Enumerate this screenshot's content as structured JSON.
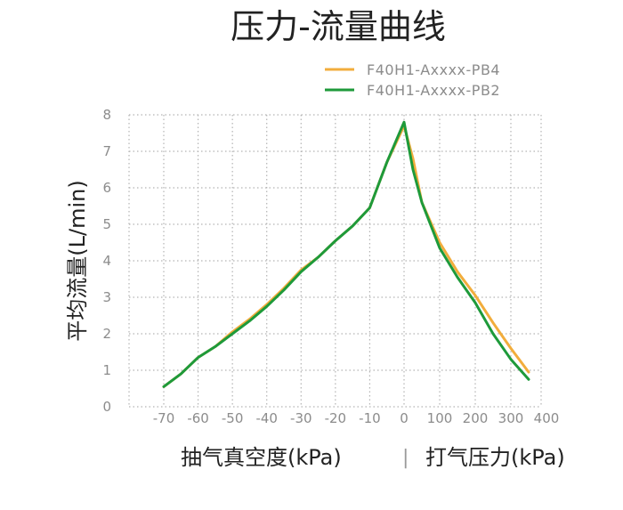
{
  "chart_data": {
    "type": "line",
    "title": "压力-流量曲线",
    "ylabel": "平均流量(L/min)",
    "xlabel_left": "抽气真空度(kPa)",
    "xlabel_separator": "|",
    "xlabel_right": "打气压力(kPa)",
    "x_ticks": [
      "-70",
      "-60",
      "-50",
      "-40",
      "-30",
      "-20",
      "-10",
      "0",
      "100",
      "200",
      "300",
      "400"
    ],
    "y_ticks": [
      "0",
      "1",
      "2",
      "3",
      "4",
      "5",
      "6",
      "7",
      "8"
    ],
    "ylim": [
      0,
      8
    ],
    "grid": true,
    "legend_position": "top-right",
    "series": [
      {
        "name": "F40H1-Axxxx-PB4",
        "color": "#f2ad3c",
        "points": [
          [
            -70,
            0.55
          ],
          [
            -65,
            0.9
          ],
          [
            -60,
            1.35
          ],
          [
            -55,
            1.65
          ],
          [
            -50,
            2.05
          ],
          [
            -45,
            2.4
          ],
          [
            -40,
            2.8
          ],
          [
            -35,
            3.25
          ],
          [
            -30,
            3.75
          ],
          [
            -25,
            4.1
          ],
          [
            -20,
            4.55
          ],
          [
            -15,
            4.95
          ],
          [
            -10,
            5.45
          ],
          [
            -5,
            6.7
          ],
          [
            0,
            7.7
          ],
          [
            25,
            6.8
          ],
          [
            50,
            5.6
          ],
          [
            100,
            4.5
          ],
          [
            150,
            3.7
          ],
          [
            200,
            3.05
          ],
          [
            250,
            2.3
          ],
          [
            300,
            1.6
          ],
          [
            350,
            0.95
          ]
        ]
      },
      {
        "name": "F40H1-Axxxx-PB2",
        "color": "#1e9a3a",
        "points": [
          [
            -70,
            0.55
          ],
          [
            -65,
            0.9
          ],
          [
            -60,
            1.35
          ],
          [
            -55,
            1.65
          ],
          [
            -50,
            2.0
          ],
          [
            -45,
            2.35
          ],
          [
            -40,
            2.75
          ],
          [
            -35,
            3.2
          ],
          [
            -30,
            3.7
          ],
          [
            -25,
            4.1
          ],
          [
            -20,
            4.55
          ],
          [
            -15,
            4.95
          ],
          [
            -10,
            5.45
          ],
          [
            -5,
            6.7
          ],
          [
            0,
            7.8
          ],
          [
            25,
            6.5
          ],
          [
            50,
            5.6
          ],
          [
            100,
            4.35
          ],
          [
            150,
            3.55
          ],
          [
            200,
            2.85
          ],
          [
            250,
            2.0
          ],
          [
            300,
            1.3
          ],
          [
            350,
            0.75
          ]
        ]
      }
    ]
  }
}
